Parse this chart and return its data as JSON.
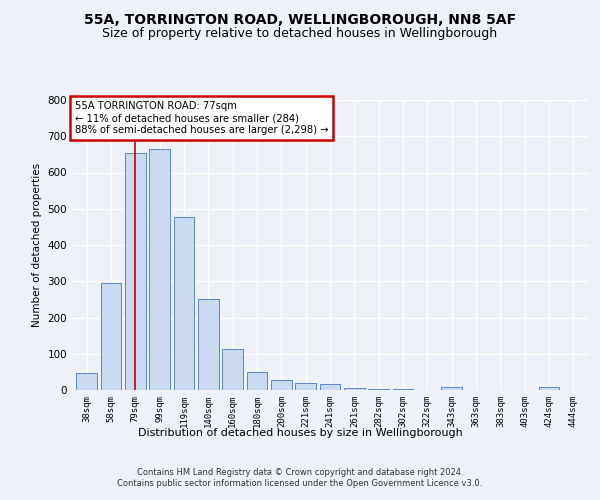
{
  "title": "55A, TORRINGTON ROAD, WELLINGBOROUGH, NN8 5AF",
  "subtitle": "Size of property relative to detached houses in Wellingborough",
  "xlabel": "Distribution of detached houses by size in Wellingborough",
  "ylabel": "Number of detached properties",
  "categories": [
    "38sqm",
    "58sqm",
    "79sqm",
    "99sqm",
    "119sqm",
    "140sqm",
    "160sqm",
    "180sqm",
    "200sqm",
    "221sqm",
    "241sqm",
    "261sqm",
    "282sqm",
    "302sqm",
    "322sqm",
    "343sqm",
    "363sqm",
    "383sqm",
    "403sqm",
    "424sqm",
    "444sqm"
  ],
  "values": [
    47,
    295,
    655,
    665,
    478,
    251,
    112,
    50,
    27,
    18,
    17,
    5,
    2,
    3,
    1,
    8,
    1,
    1,
    0,
    8,
    0
  ],
  "bar_color": "#c9d9f0",
  "bar_edge_color": "#5a88c8",
  "property_line_bin": 2,
  "annotation_text": "55A TORRINGTON ROAD: 77sqm\n← 11% of detached houses are smaller (284)\n88% of semi-detached houses are larger (2,298) →",
  "annotation_box_color": "#ffffff",
  "annotation_box_edge": "#cc0000",
  "vline_color": "#cc0000",
  "footnote": "Contains HM Land Registry data © Crown copyright and database right 2024.\nContains public sector information licensed under the Open Government Licence v3.0.",
  "bg_color": "#eef2f8",
  "plot_bg_color": "#eef2f8",
  "grid_color": "#ffffff",
  "ylim": [
    0,
    800
  ],
  "title_fontsize": 10,
  "subtitle_fontsize": 9
}
